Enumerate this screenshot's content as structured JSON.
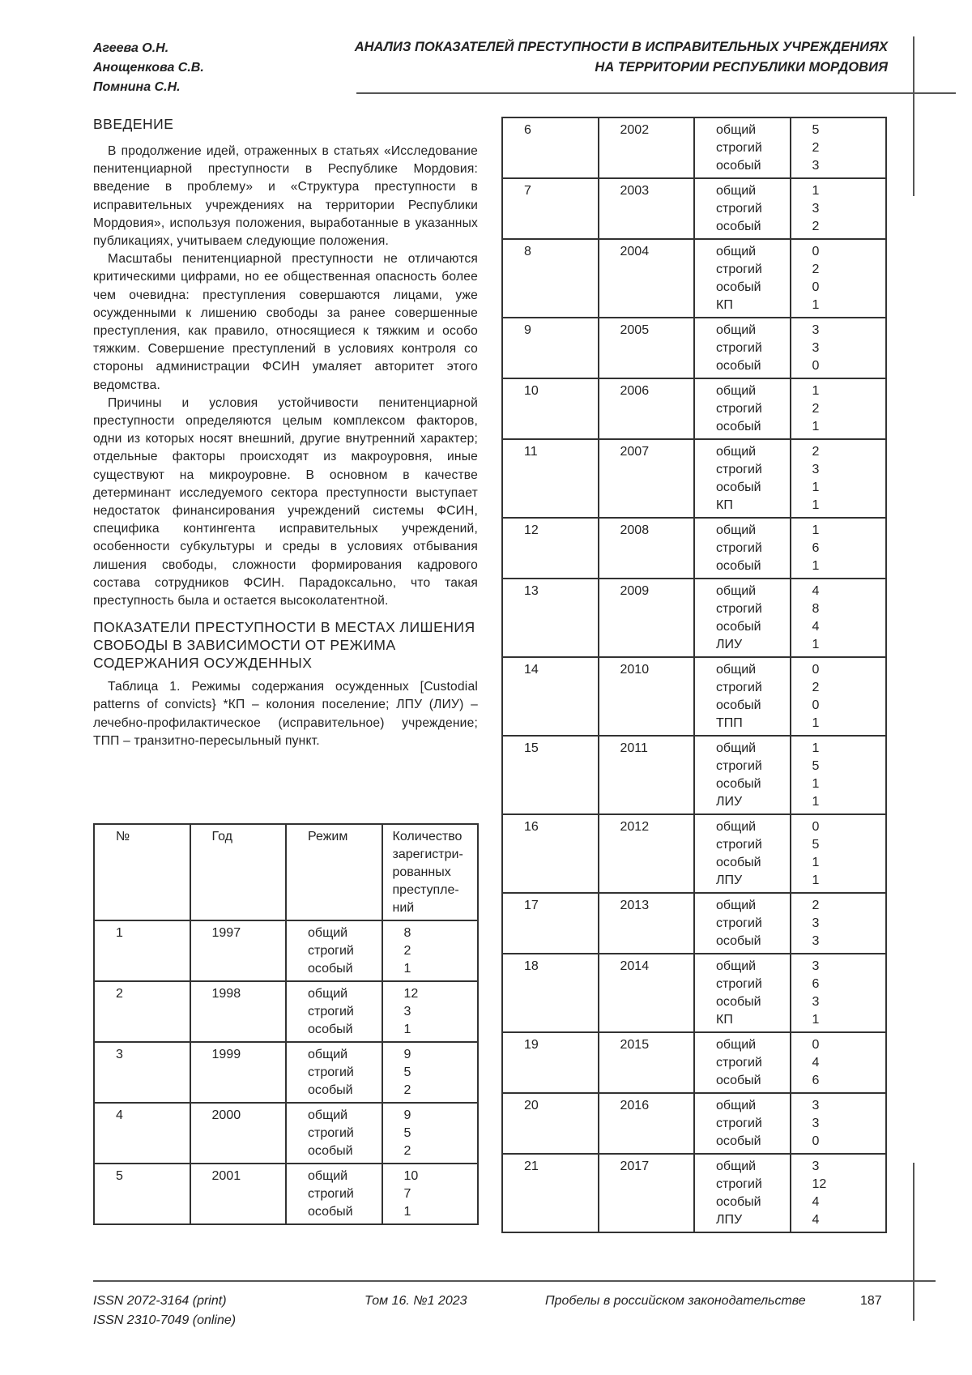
{
  "header": {
    "authors": [
      "Агеева О.Н.",
      "Анощенкова С.В.",
      "Помнина С.Н."
    ],
    "title_lines": [
      "АНАЛИЗ ПОКАЗАТЕЛЕЙ ПРЕСТУПНОСТИ В ИСПРАВИТЕЛЬНЫХ УЧРЕЖДЕНИЯХ",
      "НА ТЕРРИТОРИИ РЕСПУБЛИКИ МОРДОВИЯ"
    ]
  },
  "intro": {
    "heading": "ВВЕДЕНИЕ",
    "paragraphs": [
      "В продолжение идей, отраженных в статьях «Исследование пенитенциарной преступности в Республике Мордовия: введение в проблему» и «Структура преступности в исправительных учреждениях на территории Республики Мордовия», используя положения, выработанные в указанных публикациях, учитываем следующие положения.",
      "Масштабы пенитенциарной преступности не отличаются критическими цифрами, но ее общественная опасность более чем очевидна: преступления совершаются лицами, уже осужденными к лишению свободы за ранее совершенные преступления, как правило, относящиеся к тяжким и особо тяжким. Совершение преступлений в условиях контроля со стороны администрации ФСИН умаляет авторитет этого ведомства.",
      "Причины и условия устойчивости пенитенциарной преступности определяются целым комплексом факторов, одни из которых носят внешний, другие внутренний характер; отдельные факторы происходят из макроуровня, иные существуют на микроуровне. В основном в качестве детерминант исследуемого сектора преступности выступает недостаток финансирования учреждений системы ФСИН, специфика контингента исправительных учреждений, особенности субкультуры и среды в условиях отбывания лишения свободы, сложности формирования кадрового состава сотрудников ФСИН. Парадоксально, что такая преступность была и остается высоколатентной."
    ]
  },
  "section": {
    "heading": "ПОКАЗАТЕЛИ ПРЕСТУПНОСТИ В МЕСТАХ ЛИШЕНИЯ СВОБОДЫ В ЗАВИСИМОСТИ ОТ РЕЖИМА СОДЕРЖАНИЯ ОСУЖДЕННЫХ",
    "caption": "Таблица 1. Режимы содержания осужденных [Custodial patterns of convicts} *КП – колония поселение; ЛПУ (ЛИУ) – лечебно-профилактическое (исправительное) учреждение; ТПП – транзитно-пересыльный пункт."
  },
  "table": {
    "headers": [
      "№",
      "Год",
      "Режим",
      "Количество зарегистри-рованных преступле-ний"
    ],
    "rows": [
      {
        "n": "1",
        "year": "1997",
        "modes": [
          "общий",
          "строгий",
          "особый"
        ],
        "counts": [
          "8",
          "2",
          "1"
        ]
      },
      {
        "n": "2",
        "year": "1998",
        "modes": [
          "общий",
          "строгий",
          "особый"
        ],
        "counts": [
          "12",
          "3",
          "1"
        ]
      },
      {
        "n": "3",
        "year": "1999",
        "modes": [
          "общий",
          "строгий",
          "особый"
        ],
        "counts": [
          "9",
          "5",
          "2"
        ]
      },
      {
        "n": "4",
        "year": "2000",
        "modes": [
          "общий",
          "строгий",
          "особый"
        ],
        "counts": [
          "9",
          "5",
          "2"
        ]
      },
      {
        "n": "5",
        "year": "2001",
        "modes": [
          "общий",
          "строгий",
          "особый"
        ],
        "counts": [
          "10",
          "7",
          "1"
        ]
      },
      {
        "n": "6",
        "year": "2002",
        "modes": [
          "общий",
          "строгий",
          "особый"
        ],
        "counts": [
          "5",
          "2",
          "3"
        ]
      },
      {
        "n": "7",
        "year": "2003",
        "modes": [
          "общий",
          "строгий",
          "особый"
        ],
        "counts": [
          "1",
          "3",
          "2"
        ]
      },
      {
        "n": "8",
        "year": "2004",
        "modes": [
          "общий",
          "строгий",
          "особый",
          "КП"
        ],
        "counts": [
          "0",
          "2",
          "0",
          "1"
        ]
      },
      {
        "n": "9",
        "year": "2005",
        "modes": [
          "общий",
          "строгий",
          "особый"
        ],
        "counts": [
          "3",
          "3",
          "0"
        ]
      },
      {
        "n": "10",
        "year": "2006",
        "modes": [
          "общий",
          "строгий",
          "особый"
        ],
        "counts": [
          "1",
          "2",
          "1"
        ]
      },
      {
        "n": "11",
        "year": "2007",
        "modes": [
          "общий",
          "строгий",
          "особый",
          "КП"
        ],
        "counts": [
          "2",
          "3",
          "1",
          "1"
        ]
      },
      {
        "n": "12",
        "year": "2008",
        "modes": [
          "общий",
          "строгий",
          "особый"
        ],
        "counts": [
          "1",
          "6",
          "1"
        ]
      },
      {
        "n": "13",
        "year": "2009",
        "modes": [
          "общий",
          "строгий",
          "особый",
          "ЛИУ"
        ],
        "counts": [
          "4",
          "8",
          "4",
          "1"
        ]
      },
      {
        "n": "14",
        "year": "2010",
        "modes": [
          "общий",
          "строгий",
          "особый",
          "ТПП"
        ],
        "counts": [
          "0",
          "2",
          "0",
          "1"
        ]
      },
      {
        "n": "15",
        "year": "2011",
        "modes": [
          "общий",
          "строгий",
          "особый",
          "ЛИУ"
        ],
        "counts": [
          "1",
          "5",
          "1",
          "1"
        ]
      },
      {
        "n": "16",
        "year": "2012",
        "modes": [
          "общий",
          "строгий",
          "особый",
          "ЛПУ"
        ],
        "counts": [
          "0",
          "5",
          "1",
          "1"
        ]
      },
      {
        "n": "17",
        "year": "2013",
        "modes": [
          "общий",
          "строгий",
          "особый"
        ],
        "counts": [
          "2",
          "3",
          "3"
        ]
      },
      {
        "n": "18",
        "year": "2014",
        "modes": [
          "общий",
          "строгий",
          "особый",
          "КП"
        ],
        "counts": [
          "3",
          "6",
          "3",
          "1"
        ]
      },
      {
        "n": "19",
        "year": "2015",
        "modes": [
          "общий",
          "строгий",
          "особый"
        ],
        "counts": [
          "0",
          "4",
          "6"
        ]
      },
      {
        "n": "20",
        "year": "2016",
        "modes": [
          "общий",
          "строгий",
          "особый"
        ],
        "counts": [
          "3",
          "3",
          "0"
        ]
      },
      {
        "n": "21",
        "year": "2017",
        "modes": [
          "общий",
          "строгий",
          "особый",
          "ЛПУ"
        ],
        "counts": [
          "3",
          "12",
          "4",
          "4"
        ]
      }
    ]
  },
  "footer": {
    "issn_print": "ISSN 2072-3164 (print)",
    "issn_online": "ISSN 2310-7049 (online)",
    "volume": "Том 16. №1 2023",
    "journal": "Пробелы в российском законодательстве",
    "page": "187"
  }
}
